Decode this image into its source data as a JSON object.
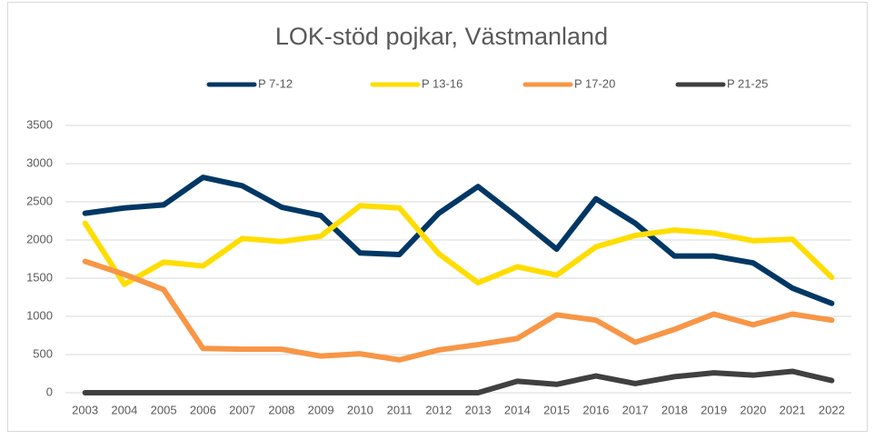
{
  "chart_data": {
    "type": "line",
    "title": "LOK-stöd pojkar, Västmanland",
    "categories": [
      "2003",
      "2004",
      "2005",
      "2006",
      "2007",
      "2008",
      "2009",
      "2010",
      "2011",
      "2012",
      "2013",
      "2014",
      "2015",
      "2016",
      "2017",
      "2018",
      "2019",
      "2020",
      "2021",
      "2022"
    ],
    "series": [
      {
        "name": "P 7-12",
        "color": "#003764",
        "values": [
          2350,
          2420,
          2460,
          2820,
          2710,
          2430,
          2320,
          1830,
          1810,
          2350,
          2700,
          2300,
          1880,
          2540,
          2220,
          1790,
          1790,
          1700,
          1370,
          1170
        ]
      },
      {
        "name": "P 13-16",
        "color": "#ffdd00",
        "values": [
          2220,
          1420,
          1710,
          1660,
          2020,
          1980,
          2050,
          2450,
          2420,
          1820,
          1440,
          1650,
          1540,
          1910,
          2060,
          2130,
          2090,
          1990,
          2010,
          1510
        ]
      },
      {
        "name": "P 17-20",
        "color": "#f79646",
        "values": [
          1720,
          1550,
          1350,
          580,
          570,
          570,
          480,
          510,
          430,
          560,
          630,
          710,
          1020,
          950,
          660,
          830,
          1030,
          890,
          1030,
          950
        ]
      },
      {
        "name": "P 21-25",
        "color": "#404040",
        "values": [
          0,
          0,
          0,
          0,
          0,
          0,
          0,
          0,
          0,
          0,
          0,
          150,
          110,
          220,
          120,
          210,
          260,
          230,
          280,
          160
        ]
      }
    ],
    "ylim": [
      0,
      3500
    ],
    "yticks": [
      0,
      500,
      1000,
      1500,
      2000,
      2500,
      3000,
      3500
    ],
    "grid": true,
    "legend": "top"
  }
}
